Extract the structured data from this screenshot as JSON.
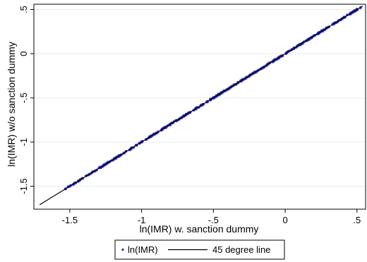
{
  "chart_data": {
    "type": "scatter",
    "xlabel": "ln(IMR) w. sanction dummy",
    "ylabel": "ln(IMR) w/o sanction dummy",
    "xlim": [
      -1.75,
      0.56
    ],
    "ylim": [
      -1.76,
      0.56
    ],
    "xticks": [
      -1.5,
      -1,
      -0.5,
      0,
      0.5
    ],
    "xtick_labels": [
      "-1.5",
      "-1",
      "-.5",
      "0",
      ".5"
    ],
    "yticks": [
      -1.5,
      -1,
      -0.5,
      0,
      0.5
    ],
    "ytick_labels": [
      "-1.5",
      "-1",
      "-.5",
      "0",
      ".5"
    ],
    "grid": true,
    "legend_position": "bottom",
    "series": [
      {
        "name": "ln(IMR)",
        "kind": "markers",
        "color": "#2a2ab8",
        "x_range": [
          -1.53,
          0.54
        ],
        "approx_point_count": 400,
        "relation": "y approximately equals x"
      },
      {
        "name": "45 degree line",
        "kind": "line",
        "color": "#000000",
        "x": [
          -1.71,
          0.54
        ],
        "y": [
          -1.71,
          0.54
        ]
      }
    ]
  }
}
